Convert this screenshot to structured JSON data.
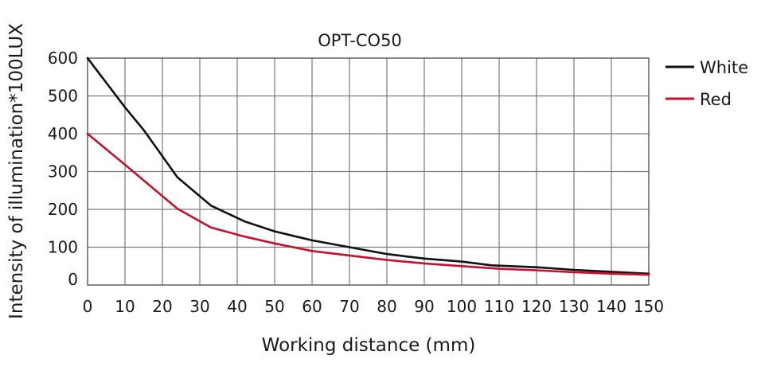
{
  "chart_data": {
    "type": "line",
    "title": "OPT-CO50",
    "xlabel": "Working distance  (mm)",
    "ylabel": "Intensity of illumination*100LUX",
    "xlim": [
      0,
      150
    ],
    "ylim": [
      0,
      600
    ],
    "xticks": [
      0,
      10,
      20,
      30,
      40,
      50,
      60,
      70,
      80,
      90,
      100,
      110,
      120,
      130,
      140,
      150
    ],
    "yticks": [
      0,
      100,
      200,
      300,
      400,
      500,
      600
    ],
    "xtick_labels": [
      "0",
      "10",
      "20",
      "30",
      "40",
      "50",
      "60",
      "70",
      "80",
      "90",
      "100",
      "110",
      "120",
      "130",
      "140",
      "150"
    ],
    "ytick_labels": [
      "0",
      "100",
      "200",
      "300",
      "400",
      "500",
      "600"
    ],
    "grid": true,
    "legend_position": "right-top",
    "series": [
      {
        "name": "White",
        "color": "#111111",
        "x": [
          0,
          10,
          15,
          24,
          33,
          42,
          50,
          60,
          70,
          80,
          90,
          100,
          108,
          120,
          130,
          140,
          150
        ],
        "y": [
          600,
          470,
          410,
          285,
          210,
          168,
          142,
          118,
          100,
          82,
          70,
          62,
          52,
          47,
          40,
          35,
          30
        ]
      },
      {
        "name": "Red",
        "color": "#c8102e",
        "x": [
          0,
          10,
          24,
          33,
          42,
          50,
          60,
          70,
          80,
          90,
          100,
          110,
          120,
          130,
          140,
          150
        ],
        "y": [
          400,
          318,
          202,
          152,
          128,
          110,
          90,
          78,
          66,
          57,
          50,
          43,
          39,
          34,
          30,
          27
        ]
      }
    ]
  }
}
